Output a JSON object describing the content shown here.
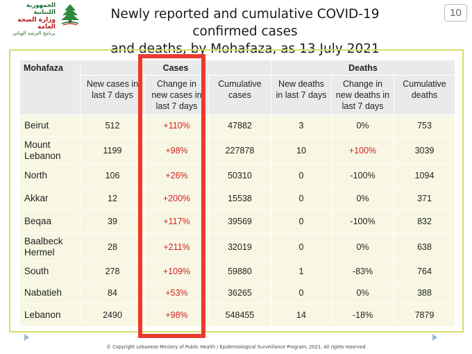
{
  "logo": {
    "line1": "الجمهورية اللبنانية",
    "line2": "وزارة الصحة العامة",
    "line3": "برنامج الترصد الوبائي",
    "icon": "cedar-tree-icon",
    "colors": {
      "green": "#1f6b2e",
      "red": "#b01818"
    }
  },
  "title": {
    "line1": "Newly reported and cumulative COVID-19 confirmed cases",
    "line2": "and deaths, by Mohafaza,  as 13 July 2021"
  },
  "page_number": "10",
  "table": {
    "header_group": {
      "mohafaza": "Mohafaza",
      "cases": "Cases",
      "deaths": "Deaths"
    },
    "columns": [
      "New cases in last 7 days",
      "Change in new cases in last 7 days",
      "Cumulative cases",
      "New deaths in last 7 days",
      "Change in new deaths in last 7 days",
      "Cumulative deaths"
    ],
    "rows": [
      {
        "name": "Beirut",
        "new_cases": "512",
        "change_cases": "+110%",
        "cum_cases": "47882",
        "new_deaths": "3",
        "change_deaths": "0%",
        "cum_deaths": "753"
      },
      {
        "name": "Mount Lebanon",
        "new_cases": "1199",
        "change_cases": "+98%",
        "cum_cases": "227878",
        "new_deaths": "10",
        "change_deaths": "+100%",
        "cum_deaths": "3039"
      },
      {
        "name": "North",
        "new_cases": "106",
        "change_cases": "+26%",
        "cum_cases": "50310",
        "new_deaths": "0",
        "change_deaths": "-100%",
        "cum_deaths": "1094"
      },
      {
        "name": "Akkar",
        "new_cases": "12",
        "change_cases": "+200%",
        "cum_cases": "15538",
        "new_deaths": "0",
        "change_deaths": "0%",
        "cum_deaths": "371"
      },
      {
        "name": "Beqaa",
        "new_cases": "39",
        "change_cases": "+117%",
        "cum_cases": "39569",
        "new_deaths": "0",
        "change_deaths": "-100%",
        "cum_deaths": "832"
      },
      {
        "name": "Baalbeck Hermel",
        "new_cases": "28",
        "change_cases": "+211%",
        "cum_cases": "32019",
        "new_deaths": "0",
        "change_deaths": "0%",
        "cum_deaths": "638"
      },
      {
        "name": "South",
        "new_cases": "278",
        "change_cases": "+109%",
        "cum_cases": "59880",
        "new_deaths": "1",
        "change_deaths": "-83%",
        "cum_deaths": "764"
      },
      {
        "name": "Nabatieh",
        "new_cases": "84",
        "change_cases": "+53%",
        "cum_cases": "36265",
        "new_deaths": "0",
        "change_deaths": "0%",
        "cum_deaths": "388"
      },
      {
        "name": "Lebanon",
        "new_cases": "2490",
        "change_cases": "+98%",
        "cum_cases": "548455",
        "new_deaths": "14",
        "change_deaths": "-18%",
        "cum_deaths": "7879"
      }
    ],
    "colors": {
      "header_bg": "#eaeaea",
      "cell_bg": "#f7f7e3",
      "frame": "#d6dc6a",
      "increase_text": "#d42020",
      "highlight": "#ea3a2e"
    }
  },
  "footer": {
    "copyright": "© Copyright Lebanese Ministry of Public Health / Epidemiological Surveillance Program, 2021. All rights reserved"
  }
}
